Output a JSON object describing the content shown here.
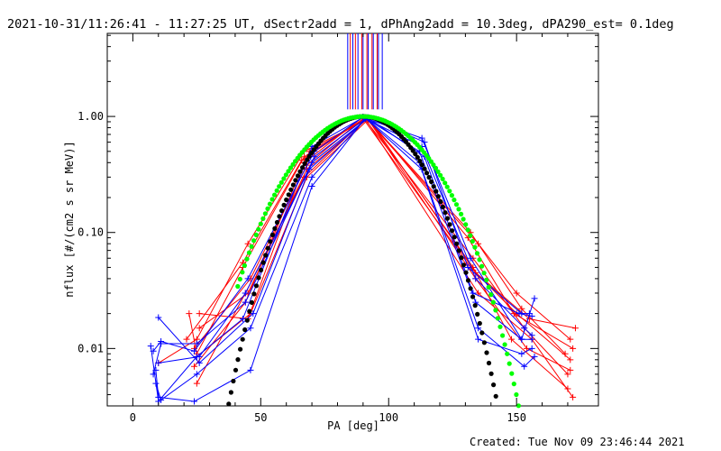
{
  "header": {
    "title": "2021-10-31/11:26:41 - 11:27:25 UT, dSectr2add = 1, dPhAng2add = 10.3deg, dPA290_est=  0.1deg"
  },
  "footer": {
    "created": "Created: Tue Nov 09 23:46:44 2021"
  },
  "chart_data": {
    "type": "line",
    "title": "2021-10-31/11:26:41 - 11:27:25 UT, dSectr2add = 1, dPhAng2add = 10.3deg, dPA290_est=  0.1deg",
    "xlabel": "PA [deg]",
    "ylabel": "nflux [#/(cm2 s sr MeV)]",
    "xlim": [
      -10,
      182
    ],
    "ylim": [
      0.0032,
      5.2
    ],
    "yscale": "log",
    "grid": false,
    "x_ticks": [
      0,
      50,
      100,
      150
    ],
    "x_tick_labels": [
      "0",
      "50",
      "100",
      "150"
    ],
    "y_ticks": [
      0.01,
      0.1,
      1.0
    ],
    "y_tick_labels": [
      "0.01",
      "0.10",
      "1.00"
    ],
    "colors": {
      "blue": "#0000ff",
      "red": "#ff0000",
      "black": "#000000",
      "green": "#00ff00"
    },
    "marker": "+",
    "vertical_markers": {
      "y_range": [
        1.15,
        5.2
      ],
      "red": [
        85,
        87,
        89.5,
        91.5,
        93.5,
        95.5
      ],
      "blue": [
        84,
        86,
        88,
        90,
        92,
        94,
        96,
        97.5
      ]
    },
    "series": [
      {
        "color": "red",
        "points": [
          [
            10,
            0.0075
          ],
          [
            25,
            0.012
          ],
          [
            45,
            0.08
          ],
          [
            67,
            0.5
          ],
          [
            92,
            0.95
          ],
          [
            133,
            0.05
          ],
          [
            148,
            0.012
          ],
          [
            170,
            0.0045
          ]
        ]
      },
      {
        "color": "red",
        "points": [
          [
            22,
            0.02
          ],
          [
            25,
            0.009
          ],
          [
            43,
            0.05
          ],
          [
            67,
            0.45
          ],
          [
            91,
            0.97
          ],
          [
            135,
            0.08
          ],
          [
            150,
            0.03
          ],
          [
            171,
            0.012
          ]
        ]
      },
      {
        "color": "red",
        "points": [
          [
            26,
            0.015
          ],
          [
            45,
            0.03
          ],
          [
            68,
            0.35
          ],
          [
            92,
            0.96
          ],
          [
            131,
            0.09
          ],
          [
            149,
            0.02
          ],
          [
            172,
            0.01
          ]
        ]
      },
      {
        "color": "red",
        "points": [
          [
            24,
            0.007
          ],
          [
            44,
            0.025
          ],
          [
            67,
            0.4
          ],
          [
            90,
            0.99
          ],
          [
            133,
            0.06
          ],
          [
            153,
            0.015
          ],
          [
            170,
            0.006
          ]
        ]
      },
      {
        "color": "red",
        "points": [
          [
            25,
            0.0085
          ],
          [
            46,
            0.02
          ],
          [
            68,
            0.3
          ],
          [
            92,
            0.94
          ],
          [
            134,
            0.04
          ],
          [
            154,
            0.01
          ],
          [
            171,
            0.0065
          ]
        ]
      },
      {
        "color": "red",
        "points": [
          [
            21,
            0.012
          ],
          [
            43,
            0.055
          ],
          [
            66,
            0.42
          ],
          [
            91,
            0.98
          ],
          [
            132,
            0.1
          ],
          [
            152,
            0.022
          ],
          [
            169,
            0.009
          ]
        ]
      },
      {
        "color": "red",
        "points": [
          [
            26,
            0.02
          ],
          [
            45,
            0.018
          ],
          [
            69,
            0.5
          ],
          [
            92,
            0.97
          ],
          [
            134,
            0.045
          ],
          [
            155,
            0.018
          ],
          [
            173,
            0.015
          ]
        ]
      },
      {
        "color": "red",
        "points": [
          [
            25,
            0.005
          ],
          [
            44,
            0.03
          ],
          [
            67,
            0.3
          ],
          [
            91,
            0.95
          ],
          [
            135,
            0.03
          ],
          [
            156,
            0.012
          ],
          [
            172,
            0.0038
          ]
        ]
      },
      {
        "color": "red",
        "points": [
          [
            24,
            0.01
          ],
          [
            46,
            0.04
          ],
          [
            68,
            0.38
          ],
          [
            90,
            0.96
          ],
          [
            132,
            0.05
          ],
          [
            150,
            0.02
          ],
          [
            171,
            0.008
          ]
        ]
      },
      {
        "color": "blue",
        "points": [
          [
            7,
            0.0105
          ],
          [
            10,
            0.0035
          ],
          [
            25,
            0.0085
          ],
          [
            43,
            0.018
          ],
          [
            70,
            0.55
          ],
          [
            90,
            0.98
          ],
          [
            113,
            0.65
          ],
          [
            132,
            0.06
          ],
          [
            152,
            0.012
          ],
          [
            157,
            0.027
          ]
        ]
      },
      {
        "color": "blue",
        "points": [
          [
            8,
            0.006
          ],
          [
            11,
            0.011
          ],
          [
            25,
            0.011
          ],
          [
            44,
            0.025
          ],
          [
            71,
            0.45
          ],
          [
            91,
            0.96
          ],
          [
            113,
            0.55
          ],
          [
            134,
            0.04
          ],
          [
            153,
            0.015
          ],
          [
            156,
            0.013
          ]
        ]
      },
      {
        "color": "blue",
        "points": [
          [
            9,
            0.0065
          ],
          [
            10,
            0.0038
          ],
          [
            24,
            0.0035
          ],
          [
            46,
            0.0065
          ],
          [
            70,
            0.25
          ],
          [
            91,
            0.97
          ],
          [
            112,
            0.4
          ],
          [
            135,
            0.012
          ],
          [
            152,
            0.009
          ],
          [
            156,
            0.01
          ]
        ]
      },
      {
        "color": "blue",
        "points": [
          [
            10,
            0.0185
          ],
          [
            26,
            0.0075
          ],
          [
            47,
            0.02
          ],
          [
            70,
            0.4
          ],
          [
            92,
            0.97
          ],
          [
            114,
            0.45
          ],
          [
            133,
            0.03
          ],
          [
            151,
            0.02
          ],
          [
            156,
            0.019
          ]
        ]
      },
      {
        "color": "blue",
        "points": [
          [
            8,
            0.0095
          ],
          [
            11,
            0.0115
          ],
          [
            24,
            0.0095
          ],
          [
            45,
            0.04
          ],
          [
            71,
            0.5
          ],
          [
            90,
            0.99
          ],
          [
            112,
            0.5
          ],
          [
            134,
            0.025
          ],
          [
            152,
            0.012
          ],
          [
            156,
            0.012
          ]
        ]
      },
      {
        "color": "blue",
        "points": [
          [
            9,
            0.005
          ],
          [
            11,
            0.0036
          ],
          [
            25,
            0.006
          ],
          [
            46,
            0.015
          ],
          [
            70,
            0.3
          ],
          [
            91,
            0.96
          ],
          [
            113,
            0.35
          ],
          [
            135,
            0.015
          ],
          [
            153,
            0.007
          ],
          [
            157,
            0.0085
          ]
        ]
      },
      {
        "color": "blue",
        "points": [
          [
            10,
            0.0075
          ],
          [
            26,
            0.0085
          ],
          [
            44,
            0.03
          ],
          [
            69,
            0.35
          ],
          [
            92,
            0.98
          ],
          [
            114,
            0.6
          ],
          [
            131,
            0.05
          ],
          [
            152,
            0.02
          ],
          [
            155,
            0.02
          ]
        ]
      }
    ],
    "fits": [
      {
        "color": "black",
        "style": "dots",
        "exponent": 11.5,
        "x_range": [
          33,
          152
        ]
      },
      {
        "color": "green",
        "style": "dots",
        "exponent": 8.0,
        "x_range": [
          41,
          158
        ]
      }
    ]
  }
}
